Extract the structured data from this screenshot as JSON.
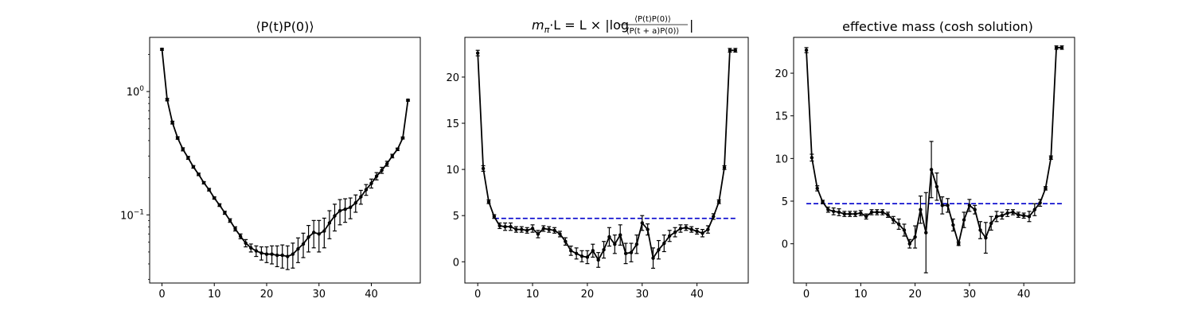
{
  "chart_data": [
    {
      "type": "line",
      "title": "⟨P(t)P(0)⟩",
      "yscale": "log",
      "xlim": [
        -2.35,
        49.35
      ],
      "ylim": [
        0.028,
        2.75
      ],
      "xticks": [
        0,
        10,
        20,
        30,
        40
      ],
      "yticks": [
        {
          "value": 1.0,
          "base": "10",
          "exp": "0"
        },
        {
          "value": 0.1,
          "base": "10",
          "exp": "−1"
        }
      ],
      "grid": false,
      "series": [
        {
          "color": "#000000",
          "x": [
            0,
            1,
            2,
            3,
            4,
            5,
            6,
            7,
            8,
            9,
            10,
            11,
            12,
            13,
            14,
            15,
            16,
            17,
            18,
            19,
            20,
            21,
            22,
            23,
            24,
            25,
            26,
            27,
            28,
            29,
            30,
            31,
            32,
            33,
            34,
            35,
            36,
            37,
            38,
            39,
            40,
            41,
            42,
            43,
            44,
            45,
            46,
            47
          ],
          "y": [
            2.2,
            0.86,
            0.56,
            0.42,
            0.34,
            0.29,
            0.245,
            0.213,
            0.182,
            0.16,
            0.137,
            0.12,
            0.104,
            0.09,
            0.077,
            0.067,
            0.059,
            0.054,
            0.051,
            0.049,
            0.048,
            0.048,
            0.047,
            0.047,
            0.046,
            0.048,
            0.053,
            0.058,
            0.066,
            0.072,
            0.07,
            0.074,
            0.086,
            0.098,
            0.108,
            0.111,
            0.115,
            0.125,
            0.14,
            0.16,
            0.18,
            0.206,
            0.23,
            0.26,
            0.3,
            0.34,
            0.42,
            0.85
          ],
          "yerr": [
            0.04,
            0.02,
            0.015,
            0.01,
            0.01,
            0.008,
            0.006,
            0.005,
            0.004,
            0.004,
            0.003,
            0.003,
            0.003,
            0.003,
            0.003,
            0.003,
            0.004,
            0.004,
            0.005,
            0.006,
            0.007,
            0.008,
            0.009,
            0.01,
            0.01,
            0.011,
            0.012,
            0.013,
            0.016,
            0.018,
            0.02,
            0.02,
            0.022,
            0.024,
            0.025,
            0.024,
            0.022,
            0.02,
            0.018,
            0.016,
            0.015,
            0.014,
            0.013,
            0.012,
            0.01,
            0.008,
            0.008,
            0.015
          ]
        }
      ]
    },
    {
      "type": "line",
      "title_parts": {
        "lhs": "m",
        "lhs_sub": "π",
        "mid": "·L = L × |log",
        "numerator": "⟨P(t)P(0)⟩",
        "denominator": "⟨P(t + a)P(0)⟩",
        "end": "|"
      },
      "xlim": [
        -2.35,
        49.35
      ],
      "ylim": [
        -2.3,
        24.3
      ],
      "xticks": [
        0,
        10,
        20,
        30,
        40
      ],
      "yticks": [
        0,
        5,
        10,
        15,
        20
      ],
      "grid": false,
      "reference_line": {
        "y": 4.7,
        "x_range": [
          3,
          47
        ],
        "color": "#0000cc",
        "style": "dashed"
      },
      "series": [
        {
          "color": "#000000",
          "x": [
            0,
            1,
            2,
            3,
            4,
            5,
            6,
            7,
            8,
            9,
            10,
            11,
            12,
            13,
            14,
            15,
            16,
            17,
            18,
            19,
            20,
            21,
            22,
            23,
            24,
            25,
            26,
            27,
            28,
            29,
            30,
            31,
            32,
            33,
            34,
            35,
            36,
            37,
            38,
            39,
            40,
            41,
            42,
            43,
            44,
            45,
            46,
            47
          ],
          "y": [
            22.6,
            10.1,
            6.5,
            4.9,
            3.9,
            3.8,
            3.8,
            3.5,
            3.5,
            3.4,
            3.6,
            3.0,
            3.6,
            3.5,
            3.4,
            3.0,
            2.2,
            1.2,
            0.9,
            0.6,
            0.5,
            1.2,
            0.2,
            1.3,
            2.7,
            1.9,
            2.9,
            0.9,
            1.0,
            1.9,
            4.2,
            3.5,
            0.4,
            1.3,
            2.0,
            2.8,
            3.2,
            3.6,
            3.7,
            3.5,
            3.3,
            3.1,
            3.5,
            4.9,
            6.5,
            10.2,
            22.9,
            22.9
          ],
          "yerr": [
            0.3,
            0.3,
            0.2,
            0.2,
            0.3,
            0.4,
            0.4,
            0.3,
            0.3,
            0.3,
            0.4,
            0.4,
            0.3,
            0.3,
            0.3,
            0.3,
            0.4,
            0.5,
            0.6,
            0.6,
            0.7,
            0.7,
            0.8,
            0.9,
            1.0,
            1.0,
            1.1,
            1.1,
            1.0,
            1.0,
            0.8,
            0.6,
            1.1,
            1.0,
            0.9,
            0.6,
            0.5,
            0.4,
            0.3,
            0.3,
            0.3,
            0.4,
            0.4,
            0.3,
            0.2,
            0.2,
            0.2,
            0.2
          ]
        }
      ]
    },
    {
      "type": "line",
      "title": "effective mass (cosh solution)",
      "xlim": [
        -2.35,
        49.35
      ],
      "ylim": [
        -4.6,
        24.2
      ],
      "xticks": [
        0,
        10,
        20,
        30,
        40
      ],
      "yticks": [
        0,
        5,
        10,
        15,
        20
      ],
      "grid": false,
      "reference_line": {
        "y": 4.7,
        "x_range": [
          0,
          47
        ],
        "color": "#0000cc",
        "style": "dashed"
      },
      "series": [
        {
          "color": "#000000",
          "x": [
            0,
            1,
            2,
            3,
            4,
            5,
            6,
            7,
            8,
            9,
            10,
            11,
            12,
            13,
            14,
            15,
            16,
            17,
            18,
            19,
            20,
            21,
            22,
            23,
            24,
            25,
            26,
            27,
            28,
            29,
            30,
            31,
            32,
            33,
            34,
            35,
            36,
            37,
            38,
            39,
            40,
            41,
            42,
            43,
            44,
            45,
            46,
            47
          ],
          "y": [
            22.7,
            10.1,
            6.5,
            4.9,
            4.0,
            3.8,
            3.7,
            3.5,
            3.5,
            3.5,
            3.6,
            3.2,
            3.7,
            3.7,
            3.7,
            3.4,
            2.8,
            2.3,
            1.6,
            0.0,
            0.8,
            4.0,
            1.3,
            8.7,
            6.7,
            4.5,
            4.5,
            2.2,
            0.0,
            2.8,
            4.5,
            4.0,
            1.6,
            0.7,
            2.4,
            3.2,
            3.3,
            3.6,
            3.7,
            3.4,
            3.3,
            3.2,
            4.0,
            4.8,
            6.5,
            10.1,
            23.0,
            23.0
          ],
          "yerr": [
            0.3,
            0.4,
            0.3,
            0.2,
            0.3,
            0.4,
            0.4,
            0.3,
            0.3,
            0.3,
            0.3,
            0.3,
            0.3,
            0.3,
            0.3,
            0.3,
            0.4,
            0.6,
            0.7,
            0.5,
            1.3,
            1.6,
            4.7,
            3.3,
            1.6,
            1.0,
            0.8,
            0.7,
            0.2,
            0.9,
            0.7,
            0.5,
            1.0,
            1.8,
            0.8,
            0.6,
            0.4,
            0.4,
            0.3,
            0.3,
            0.3,
            0.6,
            0.7,
            0.4,
            0.2,
            0.2,
            0.2,
            0.2
          ]
        }
      ]
    }
  ]
}
